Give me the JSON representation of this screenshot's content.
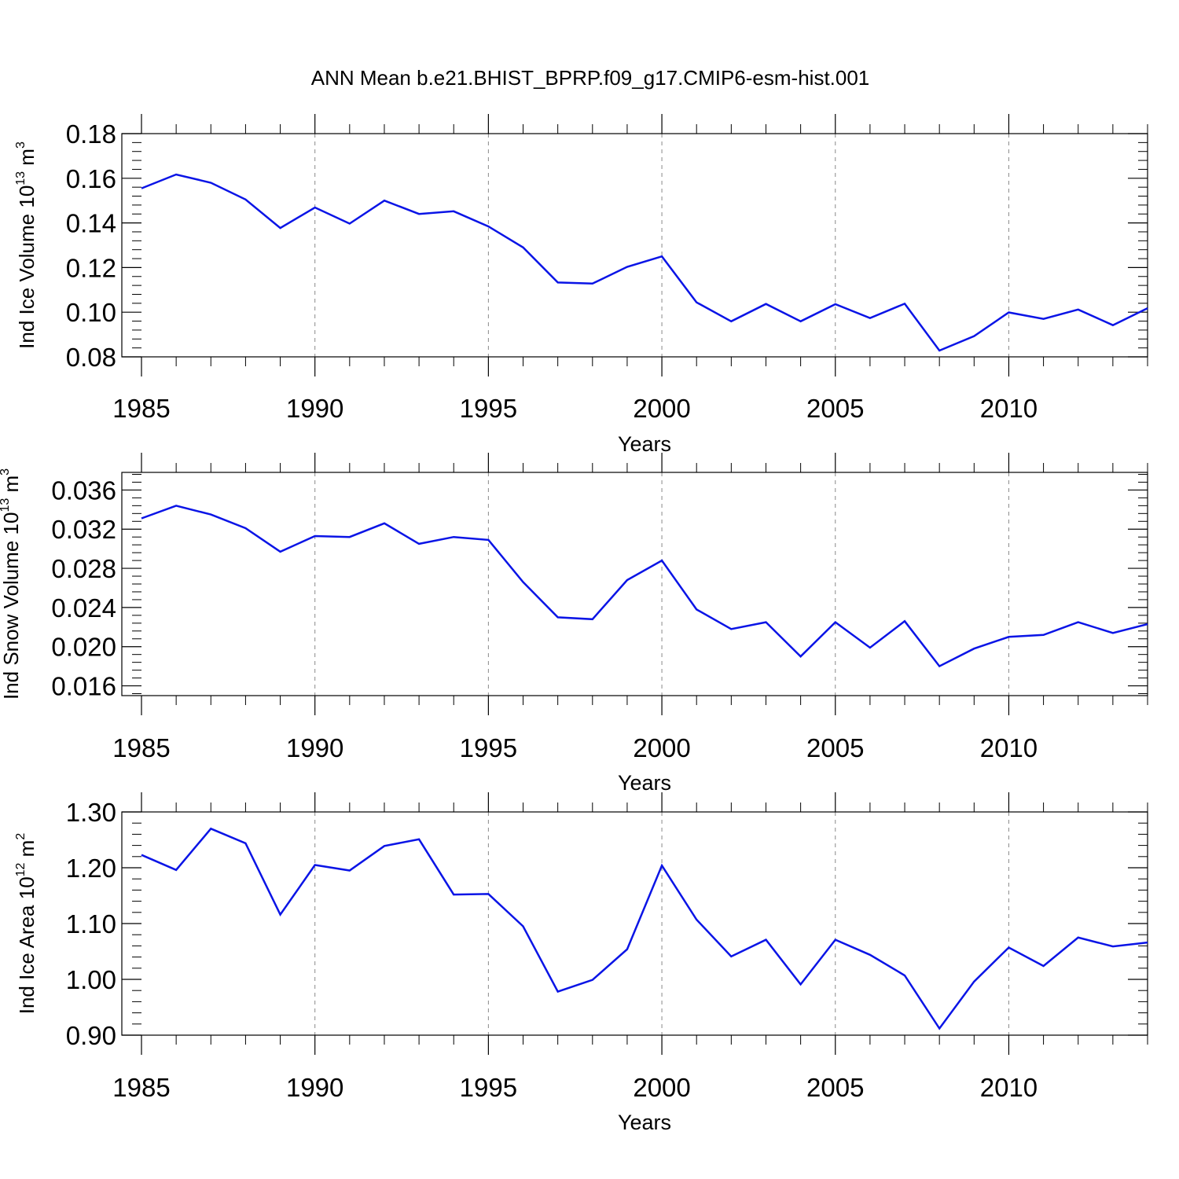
{
  "title": "ANN Mean b.e21.BHIST_BPRP.f09_g17.CMIP6-esm-hist.001",
  "line_color": "#0a14e6",
  "chart_data": [
    {
      "type": "line",
      "ylabel": {
        "main": "Ind Ice Volume 10",
        "exp": "13",
        "unit": " m",
        "unit_exp": "3"
      },
      "xlabel": "Years",
      "ylim": [
        0.08,
        0.18
      ],
      "yticks": [
        0.08,
        0.1,
        0.12,
        0.14,
        0.16,
        0.18
      ],
      "ytick_labels": [
        "0.08",
        "0.10",
        "0.12",
        "0.14",
        "0.16",
        "0.18"
      ],
      "xlim": [
        1985,
        2014
      ],
      "xticks": [
        1985,
        1990,
        1995,
        2000,
        2005,
        2010
      ],
      "xtick_labels": [
        "1985",
        "1990",
        "1995",
        "2000",
        "2005",
        "2010"
      ],
      "x": [
        1985,
        1986,
        1987,
        1988,
        1989,
        1990,
        1991,
        1992,
        1993,
        1994,
        1995,
        1996,
        1997,
        1998,
        1999,
        2000,
        2001,
        2002,
        2003,
        2004,
        2005,
        2006,
        2007,
        2008,
        2009,
        2010,
        2011,
        2012,
        2013,
        2014
      ],
      "values": [
        0.1555,
        0.1617,
        0.158,
        0.1505,
        0.1377,
        0.1469,
        0.1397,
        0.15,
        0.144,
        0.1452,
        0.1384,
        0.129,
        0.1133,
        0.1128,
        0.1203,
        0.125,
        0.1044,
        0.0959,
        0.1037,
        0.0959,
        0.1036,
        0.0974,
        0.1038,
        0.0828,
        0.0893,
        0.0999,
        0.097,
        0.1012,
        0.0942,
        0.1018
      ]
    },
    {
      "type": "line",
      "ylabel": {
        "main": "Ind Snow Volume 10",
        "exp": "13",
        "unit": " m",
        "unit_exp": "3"
      },
      "xlabel": "Years",
      "ylim": [
        0.015,
        0.0378
      ],
      "yticks": [
        0.016,
        0.02,
        0.024,
        0.028,
        0.032,
        0.036
      ],
      "ytick_labels": [
        "0.016",
        "0.020",
        "0.024",
        "0.028",
        "0.032",
        "0.036"
      ],
      "xlim": [
        1985,
        2014
      ],
      "xticks": [
        1985,
        1990,
        1995,
        2000,
        2005,
        2010
      ],
      "xtick_labels": [
        "1985",
        "1990",
        "1995",
        "2000",
        "2005",
        "2010"
      ],
      "x": [
        1985,
        1986,
        1987,
        1988,
        1989,
        1990,
        1991,
        1992,
        1993,
        1994,
        1995,
        1996,
        1997,
        1998,
        1999,
        2000,
        2001,
        2002,
        2003,
        2004,
        2005,
        2006,
        2007,
        2008,
        2009,
        2010,
        2011,
        2012,
        2013,
        2014
      ],
      "values": [
        0.0331,
        0.0344,
        0.0335,
        0.0321,
        0.0297,
        0.0313,
        0.0312,
        0.0326,
        0.0305,
        0.0312,
        0.0309,
        0.0266,
        0.023,
        0.0228,
        0.0268,
        0.0288,
        0.0238,
        0.0218,
        0.0225,
        0.019,
        0.0225,
        0.0199,
        0.0226,
        0.018,
        0.0198,
        0.021,
        0.0212,
        0.0225,
        0.0214,
        0.0223
      ]
    },
    {
      "type": "line",
      "ylabel": {
        "main": "Ind Ice Area 10",
        "exp": "12",
        "unit": " m",
        "unit_exp": "2"
      },
      "xlabel": "Years",
      "ylim": [
        0.9,
        1.3
      ],
      "yticks": [
        0.9,
        1.0,
        1.1,
        1.2,
        1.3
      ],
      "ytick_labels": [
        "0.90",
        "1.00",
        "1.10",
        "1.20",
        "1.30"
      ],
      "xlim": [
        1985,
        2014
      ],
      "xticks": [
        1985,
        1990,
        1995,
        2000,
        2005,
        2010
      ],
      "xtick_labels": [
        "1985",
        "1990",
        "1995",
        "2000",
        "2005",
        "2010"
      ],
      "x": [
        1985,
        1986,
        1987,
        1988,
        1989,
        1990,
        1991,
        1992,
        1993,
        1994,
        1995,
        1996,
        1997,
        1998,
        1999,
        2000,
        2001,
        2002,
        2003,
        2004,
        2005,
        2006,
        2007,
        2008,
        2009,
        2010,
        2011,
        2012,
        2013,
        2014
      ],
      "values": [
        1.223,
        1.196,
        1.27,
        1.244,
        1.116,
        1.205,
        1.195,
        1.239,
        1.251,
        1.152,
        1.153,
        1.095,
        0.978,
        0.999,
        1.054,
        1.204,
        1.107,
        1.041,
        1.071,
        0.991,
        1.071,
        1.044,
        1.007,
        0.912,
        0.996,
        1.057,
        1.024,
        1.075,
        1.059,
        1.066
      ]
    }
  ]
}
